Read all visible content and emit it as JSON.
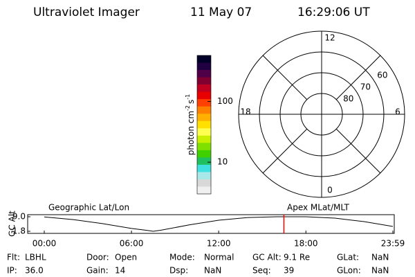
{
  "header": {
    "title": "Ultraviolet Imager",
    "date": "11 May 07",
    "time": "16:29:06 UT"
  },
  "chart_data": [
    {
      "type": "colorbar",
      "axis_label": [
        "photon cm",
        "-2",
        "s",
        "-1"
      ],
      "log_scale": true,
      "zlim": [
        3,
        575
      ],
      "zticks": [
        10,
        100
      ],
      "colors": [
        "#000028",
        "#200040",
        "#500048",
        "#800030",
        "#c00020",
        "#e80000",
        "#ff4000",
        "#ff8000",
        "#ffb000",
        "#ffe000",
        "#ffff50",
        "#c8f000",
        "#80e000",
        "#40d000",
        "#20c060",
        "#40e0e0",
        "#a8e8e8",
        "#d8d8d8",
        "#f0f0f0"
      ]
    },
    {
      "type": "polar",
      "rlim": [
        90,
        50
      ],
      "rticks": [
        60,
        70,
        80
      ],
      "thetaticks": [
        0,
        6,
        12,
        18
      ]
    },
    {
      "type": "line",
      "title_left": "Geographic Lat/Lon",
      "title_right": "Apex MLat/MLT",
      "y_label": "GC Alt",
      "x": [
        "00:00",
        "02:00",
        "04:00",
        "06:00",
        "07:00",
        "07:30",
        "08:00",
        "10:00",
        "12:00",
        "14:00",
        "16:00",
        "18:00",
        "20:00",
        "22:00",
        "23:59"
      ],
      "series": [
        {
          "color": "#000000",
          "values": [
            8.9,
            7.6,
            5.6,
            3.2,
            2.3,
            1.8,
            2.3,
            5.0,
            7.3,
            8.6,
            9.0,
            9.0,
            8.3,
            6.6,
            4.2
          ]
        }
      ],
      "xlim": [
        "00:00",
        "23:59"
      ],
      "xticks": [
        "00:00",
        "06:00",
        "12:00",
        "18:00",
        "23:59"
      ],
      "ylim": [
        1.8,
        9.0
      ],
      "yticks": [
        {
          "value": 9.0,
          "label": "9.0"
        },
        {
          "value": 1.8,
          "label": "1.8"
        }
      ],
      "current_time": "16:29:06",
      "marker_color": "#ff0000"
    }
  ],
  "status": {
    "rows": [
      [
        {
          "label": "Flt:",
          "value": "LBHL"
        },
        {
          "label": "Door:",
          "value": "Open"
        },
        {
          "label": "Mode:",
          "value": "Normal"
        },
        {
          "label": "GC Alt:",
          "value": "9.1 Re"
        },
        {
          "label": "GLat:",
          "value": "NaN"
        }
      ],
      [
        {
          "label": "IP:",
          "value": "36.0"
        },
        {
          "label": "Gain:",
          "value": "14"
        },
        {
          "label": "Dsp:",
          "value": "NaN"
        },
        {
          "label": "Seq:",
          "value": "39"
        },
        {
          "label": "GLon:",
          "value": "NaN"
        }
      ]
    ]
  }
}
